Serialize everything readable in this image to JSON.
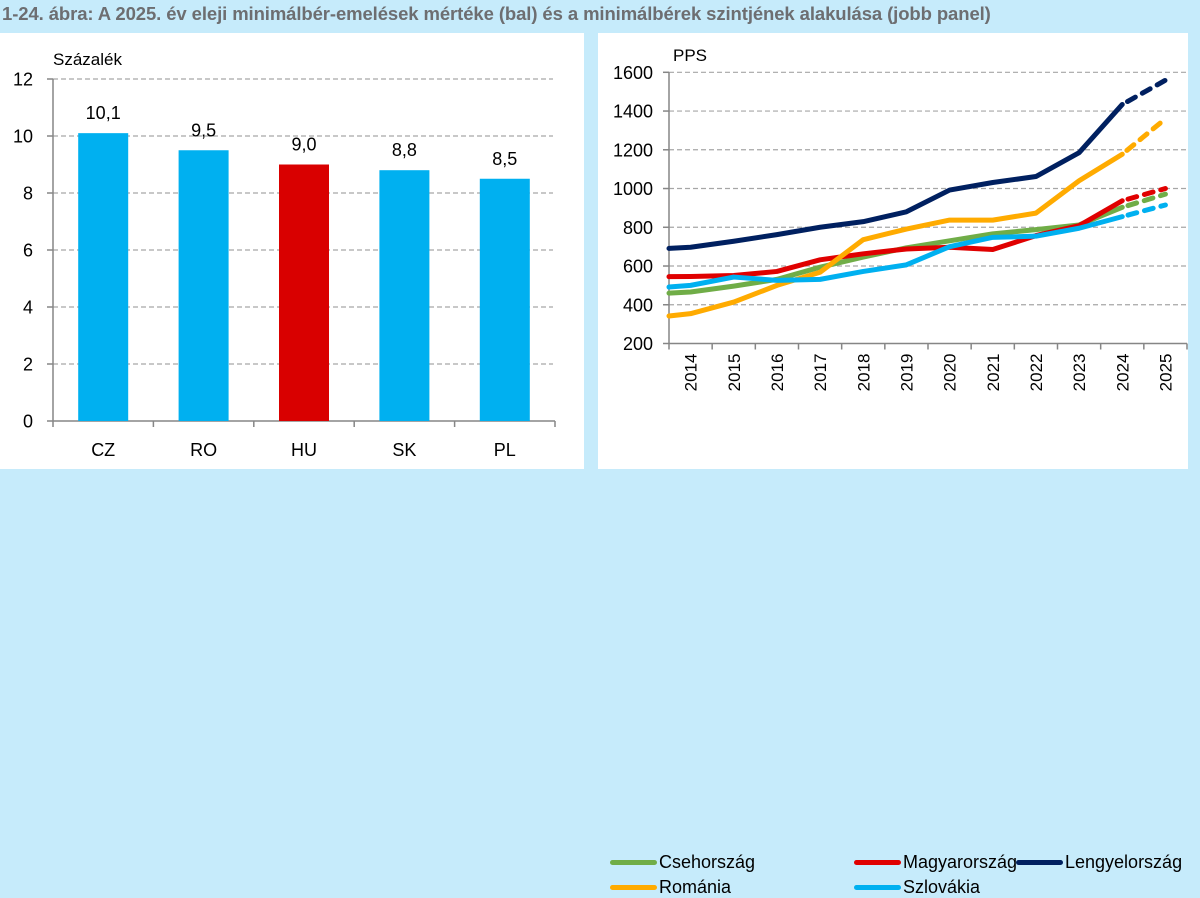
{
  "figure_title": "1-24. ábra: A 2025. év eleji minimálbér-emelések mértéke (bal) és a minimálbérek szintjének alakulása (jobb panel)",
  "chart_data": [
    {
      "type": "bar",
      "panel": "left",
      "title": "",
      "ylabel": "Százalék",
      "xlabel": "",
      "categories": [
        "CZ",
        "RO",
        "HU",
        "SK",
        "PL"
      ],
      "values": [
        10.1,
        9.5,
        9.0,
        8.8,
        8.5
      ],
      "data_labels": [
        "10,1",
        "9,5",
        "9,0",
        "8,8",
        "8,5"
      ],
      "bar_colors": [
        "#00b0f0",
        "#00b0f0",
        "#d90000",
        "#00b0f0",
        "#00b0f0"
      ],
      "ylim": [
        0,
        12
      ],
      "yticks": [
        0,
        2,
        4,
        6,
        8,
        10,
        12
      ],
      "grid": true
    },
    {
      "type": "line",
      "panel": "right",
      "title": "",
      "ylabel": "PPS",
      "xlabel": "",
      "x": [
        "2014",
        "2015",
        "2016",
        "2017",
        "2018",
        "2019",
        "2020",
        "2021",
        "2022",
        "2023",
        "2024",
        "2025"
      ],
      "ylim": [
        200,
        1600
      ],
      "yticks": [
        200,
        400,
        600,
        800,
        1000,
        1200,
        1400,
        1600
      ],
      "grid": true,
      "dashed_from": "2024",
      "legend_position": "bottom",
      "series": [
        {
          "name": "Csehország",
          "color": "#70ad47",
          "values": [
            466,
            496,
            531,
            594,
            646,
            694,
            730,
            766,
            788,
            812,
            903,
            971
          ]
        },
        {
          "name": "Magyarország",
          "color": "#e00000",
          "values": [
            546,
            551,
            572,
            632,
            663,
            688,
            697,
            685,
            757,
            808,
            937,
            1000
          ]
        },
        {
          "name": "Lengyelország",
          "color": "#002060",
          "values": [
            697,
            728,
            762,
            800,
            829,
            880,
            992,
            1031,
            1062,
            1185,
            1434,
            1559
          ]
        },
        {
          "name": "Románia",
          "color": "#ffab00",
          "values": [
            354,
            414,
            500,
            568,
            736,
            791,
            837,
            837,
            873,
            1040,
            1177,
            1360
          ]
        },
        {
          "name": "Szlovákia",
          "color": "#00b0f0",
          "values": [
            500,
            543,
            526,
            531,
            572,
            606,
            700,
            748,
            754,
            795,
            855,
            915
          ]
        }
      ]
    }
  ]
}
